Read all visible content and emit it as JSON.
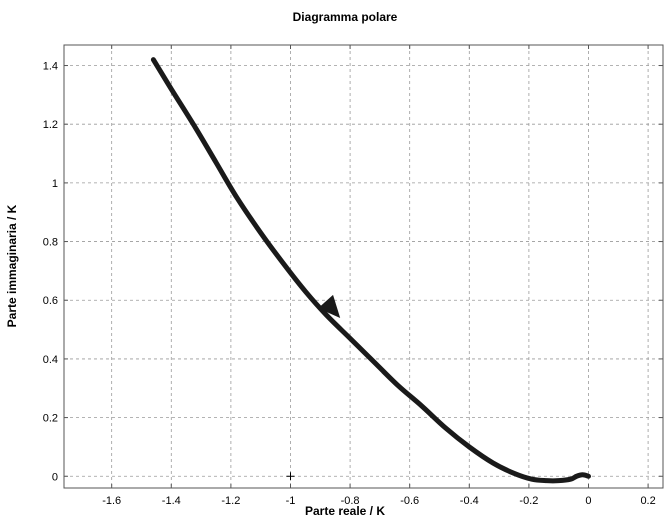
{
  "chart_data": {
    "type": "line",
    "title": "Diagramma  polare",
    "xlabel": "Parte reale / K",
    "ylabel": "Parte immaginaria / K",
    "xlim": [
      -1.76,
      0.25
    ],
    "ylim": [
      -0.04,
      1.47
    ],
    "xticks": [
      -1.6,
      -1.4,
      -1.2,
      -1.0,
      -0.8,
      -0.6,
      -0.4,
      -0.2,
      0.0,
      0.2
    ],
    "xtick_labels": [
      "-1.6",
      "-1.4",
      "-1.2",
      "-1",
      "-0.8",
      "-0.6",
      "-0.4",
      "-0.2",
      "0",
      "0.2"
    ],
    "yticks": [
      0.0,
      0.2,
      0.4,
      0.6,
      0.8,
      1.0,
      1.2,
      1.4
    ],
    "ytick_labels": [
      "0",
      "0.2",
      "0.4",
      "0.6",
      "0.8",
      "1",
      "1.2",
      "1.4"
    ],
    "grid": true,
    "grid_style": "dashed",
    "critical_point": [
      -1,
      0
    ],
    "series": [
      {
        "color": "#1a1a1a",
        "x": [
          -1.46,
          -1.4,
          -1.32,
          -1.25,
          -1.18,
          -1.1,
          -1.02,
          -0.95,
          -0.88,
          -0.8,
          -0.72,
          -0.64,
          -0.56,
          -0.48,
          -0.4,
          -0.32,
          -0.25,
          -0.19,
          -0.14,
          -0.1,
          -0.06,
          -0.04,
          -0.02,
          0.0
        ],
        "y": [
          1.42,
          1.32,
          1.19,
          1.07,
          0.95,
          0.83,
          0.72,
          0.63,
          0.55,
          0.47,
          0.39,
          0.31,
          0.24,
          0.165,
          0.1,
          0.045,
          0.01,
          -0.01,
          -0.015,
          -0.015,
          -0.01,
          0.0,
          0.005,
          0.0
        ],
        "arrow": {
          "at": [
            -0.86,
            0.57
          ],
          "direction": "toward-origin"
        }
      }
    ]
  }
}
